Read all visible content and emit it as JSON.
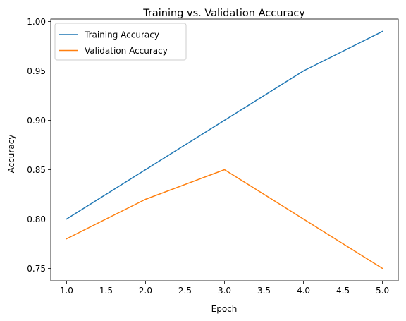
{
  "chart_data": {
    "type": "line",
    "title": "Training vs. Validation Accuracy",
    "xlabel": "Epoch",
    "ylabel": "Accuracy",
    "xlim": [
      0.8,
      5.2
    ],
    "ylim": [
      0.7375,
      1.0025
    ],
    "x_ticks": [
      1.0,
      1.5,
      2.0,
      2.5,
      3.0,
      3.5,
      4.0,
      4.5,
      5.0
    ],
    "x_tick_labels": [
      "1.0",
      "1.5",
      "2.0",
      "2.5",
      "3.0",
      "3.5",
      "4.0",
      "4.5",
      "5.0"
    ],
    "y_ticks": [
      0.75,
      0.8,
      0.85,
      0.9,
      0.95,
      1.0
    ],
    "y_tick_labels": [
      "0.75",
      "0.80",
      "0.85",
      "0.90",
      "0.95",
      "1.00"
    ],
    "x": [
      1,
      2,
      3,
      4,
      5
    ],
    "series": [
      {
        "name": "Training Accuracy",
        "color": "#1f77b4",
        "values": [
          0.8,
          0.85,
          0.9,
          0.95,
          0.99
        ]
      },
      {
        "name": "Validation Accuracy",
        "color": "#ff7f0e",
        "values": [
          0.78,
          0.82,
          0.85,
          0.8,
          0.75
        ]
      }
    ],
    "legend_position": "upper-left",
    "grid": false
  }
}
